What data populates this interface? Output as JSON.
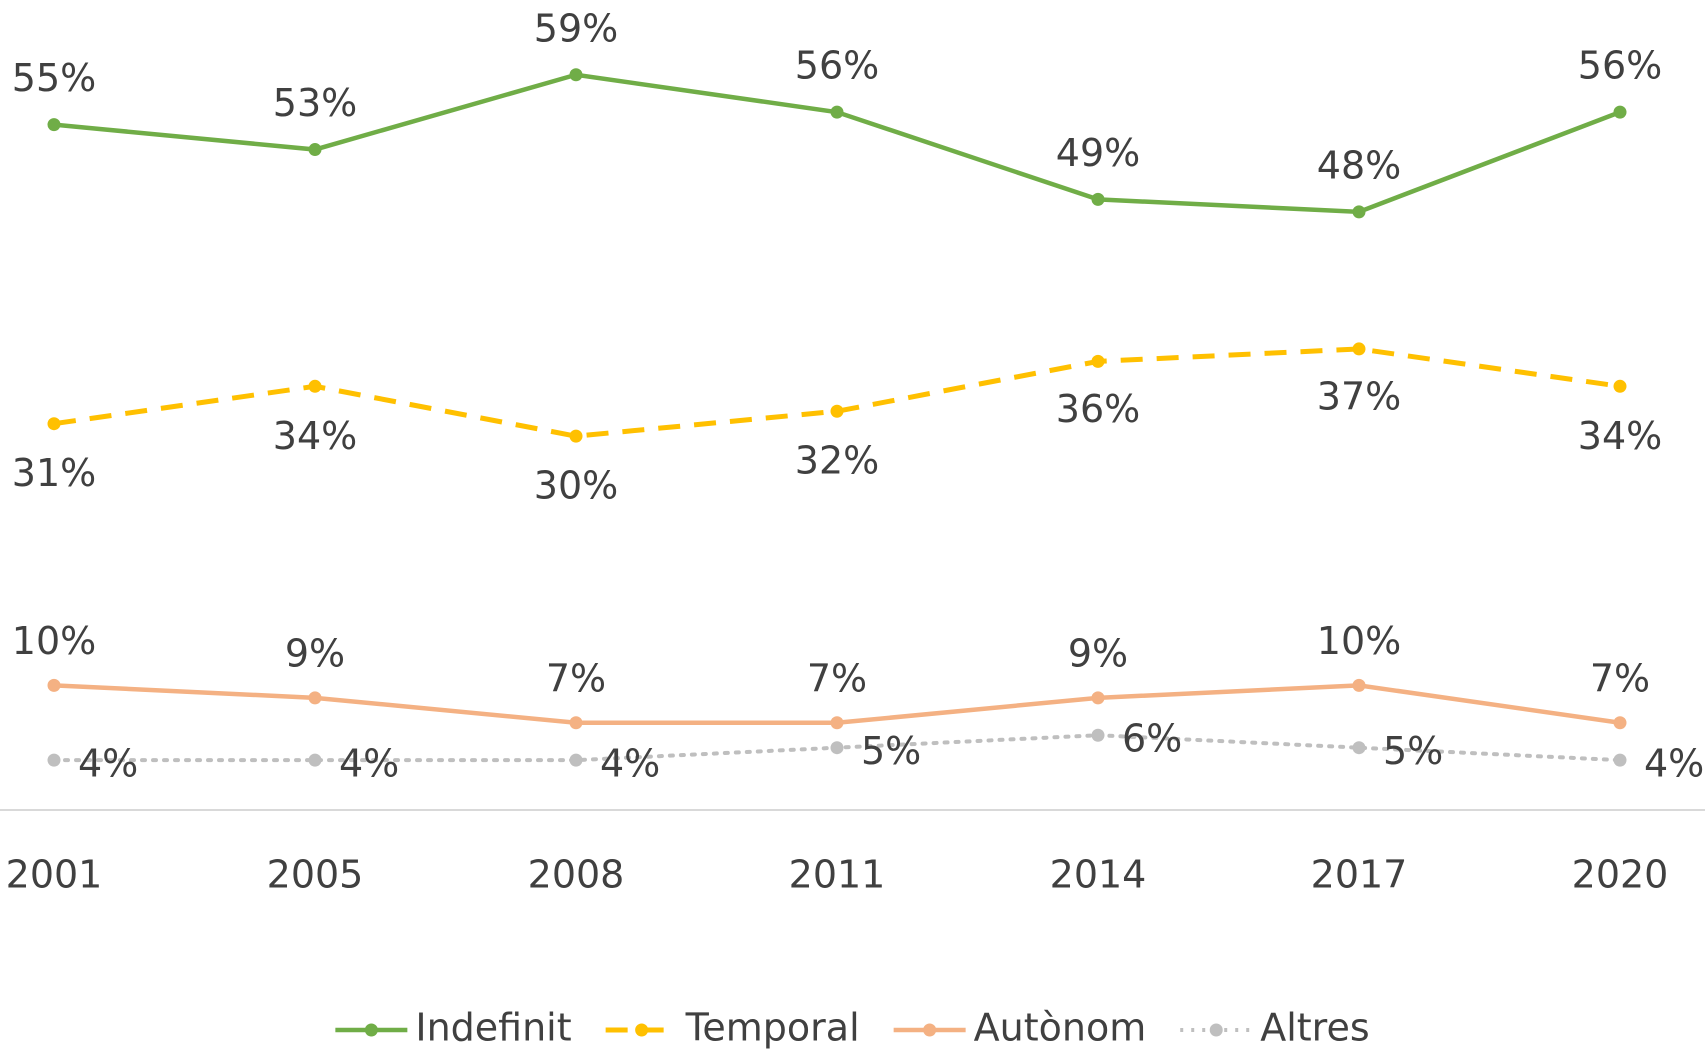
{
  "chart_data": {
    "type": "line",
    "categories": [
      "2001",
      "2005",
      "2008",
      "2011",
      "2014",
      "2017",
      "2020"
    ],
    "ylim": [
      0,
      65
    ],
    "series": [
      {
        "name": "Indefinit",
        "color": "#70ad47",
        "dash": "solid",
        "values": [
          55,
          53,
          59,
          56,
          49,
          48,
          56
        ],
        "value_labels": [
          "55%",
          "53%",
          "59%",
          "56%",
          "49%",
          "48%",
          "56%"
        ]
      },
      {
        "name": "Temporal",
        "color": "#ffc000",
        "dash": "dashed",
        "values": [
          31,
          34,
          30,
          32,
          36,
          37,
          34
        ],
        "value_labels": [
          "31%",
          "34%",
          "30%",
          "32%",
          "36%",
          "37%",
          "34%"
        ]
      },
      {
        "name": "Autònom",
        "color": "#f4b183",
        "dash": "solid",
        "values": [
          10,
          9,
          7,
          7,
          9,
          10,
          7
        ],
        "value_labels": [
          "10%",
          "9%",
          "7%",
          "7%",
          "9%",
          "10%",
          "7%"
        ]
      },
      {
        "name": "Altres",
        "color": "#bfbfbf",
        "dash": "dotted",
        "values": [
          4,
          4,
          4,
          5,
          6,
          5,
          4
        ],
        "value_labels": [
          "4%",
          "4%",
          "4%",
          "5%",
          "6%",
          "5%",
          "4%"
        ]
      }
    ]
  }
}
